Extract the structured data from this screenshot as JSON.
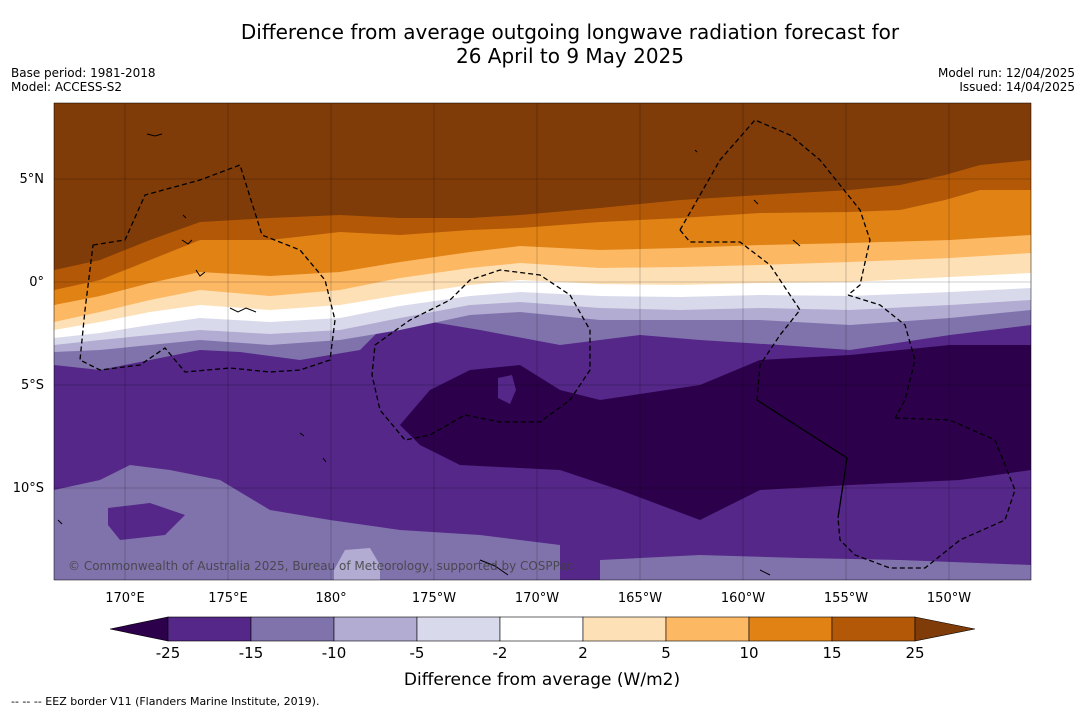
{
  "title_line1": "Difference from average outgoing longwave radiation forecast for",
  "title_line2": "26 April to 9 May 2025",
  "meta_left": {
    "base_period": "Base period: 1981-2018",
    "model": "Model: ACCESS-S2"
  },
  "meta_right": {
    "model_run": "Model run: 12/04/2025",
    "issued": "Issued: 14/04/2025"
  },
  "lat_labels": [
    "5°N",
    "0°",
    "5°S",
    "10°S"
  ],
  "lon_labels": [
    "170°E",
    "175°E",
    "180°",
    "175°W",
    "170°W",
    "165°W",
    "160°W",
    "155°W",
    "150°W"
  ],
  "watermark": "© Commonwealth of Australia 2025, Bureau of Meteorology, supported by COSPPac",
  "colorbar": {
    "ticks": [
      "-25",
      "-15",
      "-10",
      "-5",
      "-2",
      "2",
      "5",
      "10",
      "15",
      "25"
    ],
    "label": "Difference from average (W/m2)",
    "colors": [
      "#2d004b",
      "#542788",
      "#8073ac",
      "#b2abd2",
      "#d8daeb",
      "#ffffff",
      "#fee0b6",
      "#fdb863",
      "#e08214",
      "#b35806",
      "#7f3b08"
    ]
  },
  "footnote": "-- -- -- EEZ border V11 (Flanders Marine Institute, 2019)."
}
